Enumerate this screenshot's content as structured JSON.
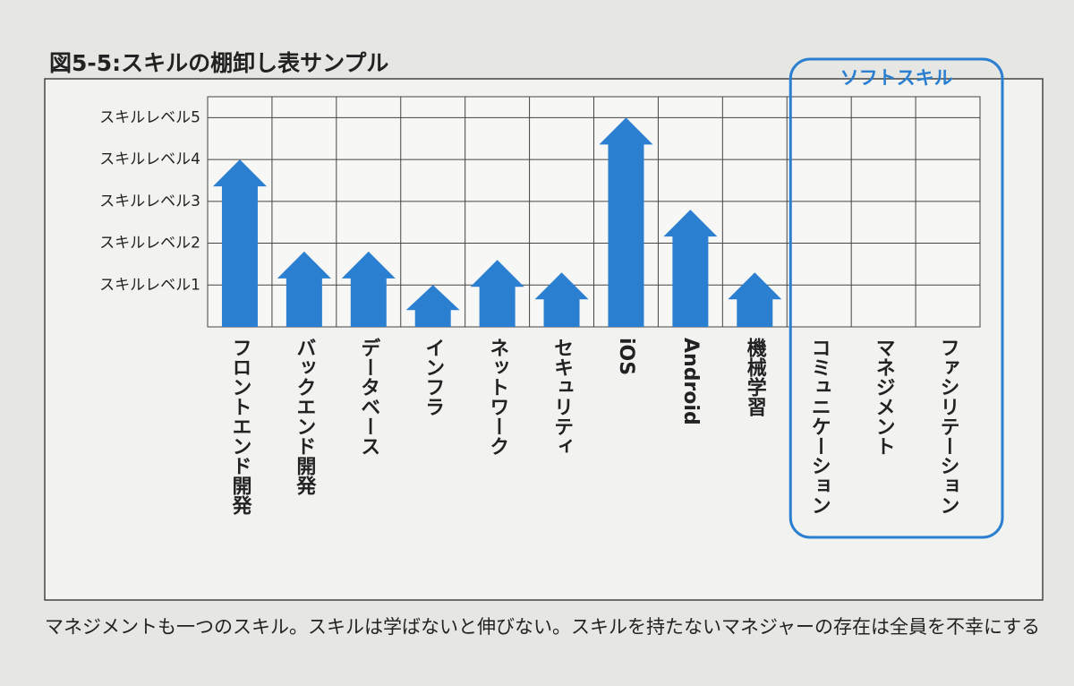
{
  "chart_data": {
    "type": "bar",
    "title": "図5-5:スキルの棚卸し表サンプル",
    "group_label": "ソフトスキル",
    "categories": [
      "フロントエンド開発",
      "バックエンド開発",
      "データベース",
      "インフラ",
      "ネットワーク",
      "セキュリティ",
      "iOS",
      "Android",
      "機械学習",
      "コミュニケーション",
      "マネジメント",
      "ファシリテーション"
    ],
    "values": [
      4.0,
      1.8,
      1.8,
      1.0,
      1.6,
      1.3,
      5.0,
      2.8,
      1.3,
      null,
      null,
      null
    ],
    "color": "#2a7fd0",
    "ylim": [
      0,
      5.5
    ],
    "yticks": [
      {
        "value": 1,
        "label": "スキルレベル1"
      },
      {
        "value": 2,
        "label": "スキルレベル2"
      },
      {
        "value": 3,
        "label": "スキルレベル3"
      },
      {
        "value": 4,
        "label": "スキルレベル4"
      },
      {
        "value": 5,
        "label": "スキルレベル5"
      }
    ],
    "grid": true,
    "caption": "マネジメントも一つのスキル。スキルは学ばないと伸びない。スキルを持たないマネジャーの存在は全員を不幸にする"
  }
}
